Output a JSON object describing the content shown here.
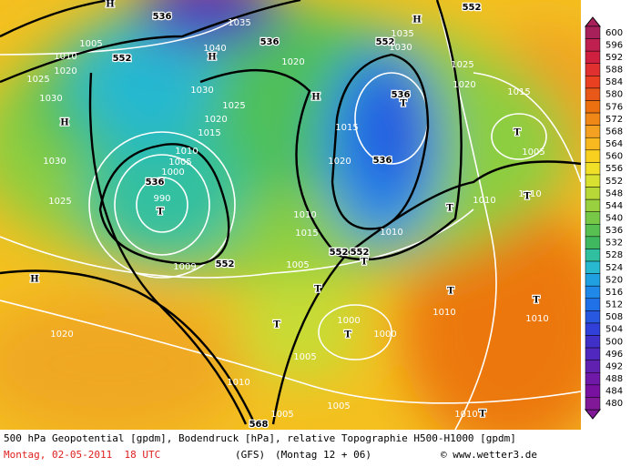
{
  "map": {
    "labels": [
      "536",
      "536",
      "552",
      "552",
      "552",
      "536",
      "536",
      "536",
      "552",
      "552",
      "552",
      "568",
      "1035",
      "1040",
      "1030",
      "1035",
      "1030",
      "1025",
      "1020",
      "1015",
      "1005",
      "1010",
      "1010",
      "1010",
      "1010",
      "1010",
      "1005",
      "1000",
      "1000",
      "1005",
      "1010",
      "1005",
      "1020",
      "1025",
      "1030",
      "1030",
      "1025",
      "1020",
      "1010",
      "1005",
      "990",
      "1000",
      "1005",
      "1010",
      "1015",
      "1020",
      "1025",
      "1020",
      "1010",
      "1015",
      "1005",
      "1009",
      "1020",
      "1015",
      "1010",
      "H",
      "H",
      "H",
      "H",
      "H",
      "H",
      "T",
      "T",
      "T",
      "T",
      "T",
      "T",
      "T",
      "T",
      "T",
      "T",
      "T",
      "T"
    ]
  },
  "legend": {
    "values": [
      600,
      596,
      592,
      588,
      584,
      580,
      576,
      572,
      568,
      564,
      560,
      556,
      552,
      548,
      544,
      540,
      536,
      532,
      528,
      524,
      520,
      516,
      512,
      508,
      504,
      500,
      496,
      492,
      488,
      484,
      480
    ],
    "colors": [
      "#a8205a",
      "#c02050",
      "#d02040",
      "#e03030",
      "#e84020",
      "#e85818",
      "#ec7010",
      "#f08818",
      "#f4a020",
      "#f8b820",
      "#f8d020",
      "#f0e028",
      "#d8e030",
      "#b8d838",
      "#98d040",
      "#78c848",
      "#58c050",
      "#40b860",
      "#30c0a0",
      "#28b8d0",
      "#20a0e0",
      "#2088e8",
      "#2070e8",
      "#2858e0",
      "#3040d8",
      "#4030c8",
      "#5028c0",
      "#6020b0",
      "#7018a8",
      "#7810a0",
      "#801898"
    ]
  },
  "footer": {
    "line1": "500 hPa Geopotential [gpdm], Bodendruck [hPa], relative Topographie H500-H1000 [gpdm]",
    "date": "Montag, 02-05-2011  18 UTC",
    "model": "(GFS)",
    "run": "(Montag 12 + 06)",
    "copyright": "© www.wetter3.de"
  }
}
